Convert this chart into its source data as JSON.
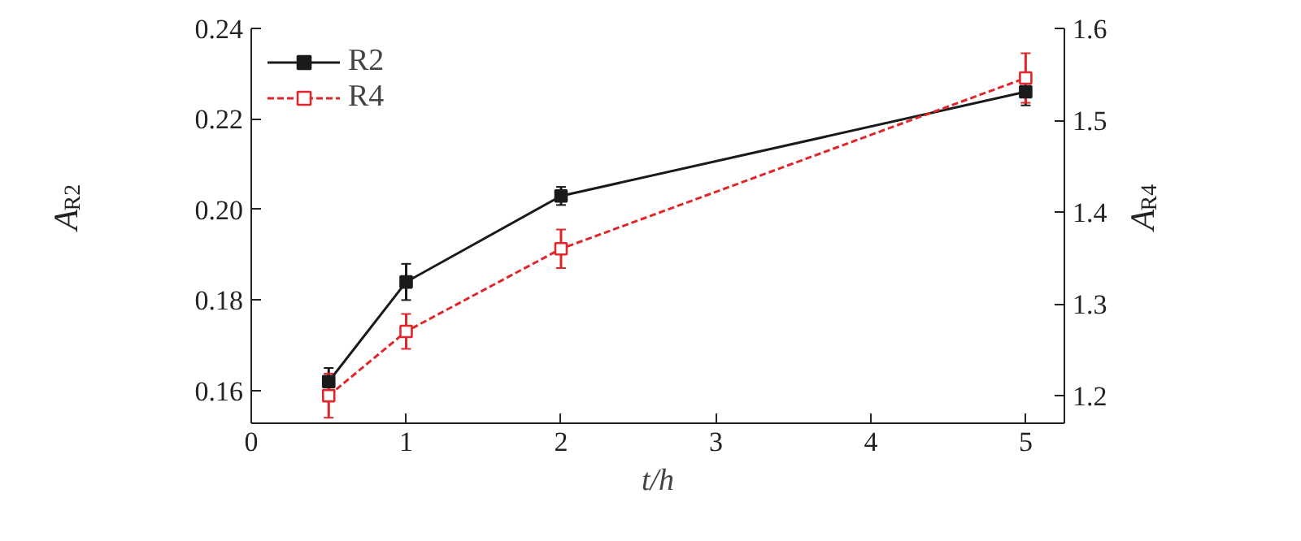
{
  "chart_data": {
    "type": "line",
    "xlabel": "t/h",
    "ylabel": "A$_{R2}$",
    "y2label": "A$_{R4}$",
    "xlim": [
      0,
      5.25
    ],
    "xticks": [
      0,
      1,
      2,
      3,
      4,
      5
    ],
    "ylim": [
      0.1528,
      0.24
    ],
    "yticks": [
      {
        "value": 0.16,
        "label": "0.16"
      },
      {
        "value": 0.18,
        "label": "0.18"
      },
      {
        "value": 0.2,
        "label": "0.20"
      },
      {
        "value": 0.22,
        "label": "0.22"
      },
      {
        "value": 0.24,
        "label": "0.24"
      }
    ],
    "y2lim": [
      1.17,
      1.6
    ],
    "y2ticks": [
      1.2,
      1.3,
      1.4,
      1.5,
      1.6
    ],
    "x": [
      0.5,
      1,
      2,
      5
    ],
    "grid": false,
    "legend": "top left",
    "series": [
      {
        "name": "R2",
        "color": "#1a1a1a",
        "values": [
          0.162,
          0.184,
          0.203,
          0.226
        ],
        "errors": [
          0.003,
          0.004,
          0.002,
          0.003
        ],
        "line_style": "solid",
        "marker": "square"
      },
      {
        "name": "R4",
        "color": "#e0262b",
        "values": [
          1.2,
          1.27,
          1.36,
          1.546
        ],
        "errors": [
          0.024,
          0.019,
          0.021,
          0.027
        ],
        "line_style": "dashed",
        "marker": "square_open",
        "axis": "y2"
      }
    ]
  }
}
